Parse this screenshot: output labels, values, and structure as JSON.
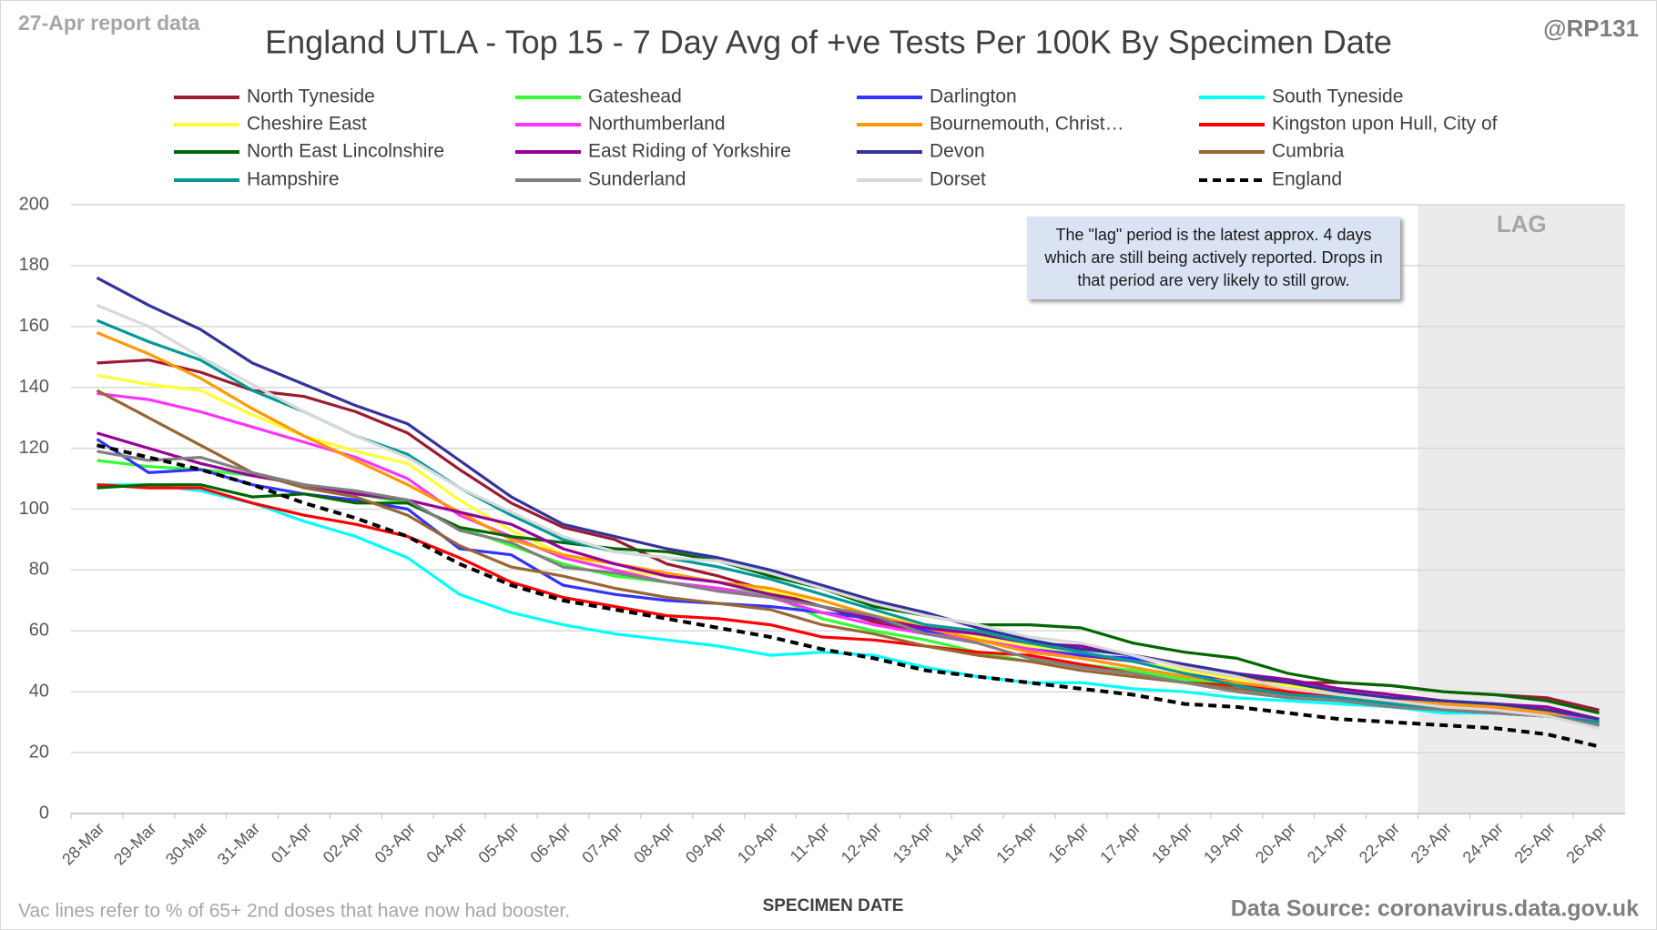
{
  "chart_data": {
    "type": "line",
    "title": "England UTLA - Top 15 - 7 Day Avg of +ve Tests Per 100K By Specimen Date",
    "report_note": "27-Apr report data",
    "author": "@RP131",
    "footnote": "Vac lines refer to % of 65+ 2nd doses that have now had booster.",
    "source": "Data Source: coronavirus.data.gov.uk",
    "x_label": "SPECIMEN DATE",
    "annotation": "The \"lag\" period is the latest approx. 4 days which are still being actively reported. Drops in that period are very likely to still grow.",
    "lag_label": "LAG",
    "lag_from": "23-Apr",
    "legend": "top",
    "grid": true,
    "ylim": [
      0,
      200
    ],
    "yticks": [
      0,
      20,
      40,
      60,
      80,
      100,
      120,
      140,
      160,
      180,
      200
    ],
    "categories": [
      "28-Mar",
      "29-Mar",
      "30-Mar",
      "31-Mar",
      "01-Apr",
      "02-Apr",
      "03-Apr",
      "04-Apr",
      "05-Apr",
      "06-Apr",
      "07-Apr",
      "08-Apr",
      "09-Apr",
      "10-Apr",
      "11-Apr",
      "12-Apr",
      "13-Apr",
      "14-Apr",
      "15-Apr",
      "16-Apr",
      "17-Apr",
      "18-Apr",
      "19-Apr",
      "20-Apr",
      "21-Apr",
      "22-Apr",
      "23-Apr",
      "24-Apr",
      "25-Apr",
      "26-Apr"
    ],
    "series": [
      {
        "name": "North Tyneside",
        "color": "#9b1b30",
        "values": [
          148,
          149,
          145,
          139,
          137,
          132,
          125,
          113,
          102,
          94,
          90,
          82,
          78,
          73,
          68,
          63,
          59,
          57,
          54,
          52,
          50,
          47,
          45,
          43,
          43,
          42,
          40,
          39,
          38,
          34
        ]
      },
      {
        "name": "Gateshead",
        "color": "#33ff33",
        "values": [
          116,
          114,
          113,
          111,
          108,
          105,
          102,
          94,
          88,
          82,
          78,
          76,
          74,
          72,
          64,
          60,
          57,
          53,
          50,
          49,
          47,
          44,
          42,
          40,
          39,
          37,
          36,
          35,
          34,
          31
        ]
      },
      {
        "name": "Darlington",
        "color": "#3333ff",
        "values": [
          123,
          112,
          113,
          108,
          105,
          103,
          100,
          87,
          85,
          75,
          72,
          70,
          69,
          68,
          66,
          64,
          60,
          58,
          55,
          52,
          51,
          46,
          43,
          40,
          39,
          37,
          35,
          33,
          32,
          30
        ]
      },
      {
        "name": "South Tyneside",
        "color": "#00ffff",
        "values": [
          108,
          108,
          106,
          102,
          96,
          91,
          84,
          72,
          66,
          62,
          59,
          57,
          55,
          52,
          53,
          52,
          48,
          45,
          43,
          43,
          41,
          40,
          38,
          37,
          36,
          35,
          33,
          33,
          32,
          29
        ]
      },
      {
        "name": "Cheshire East",
        "color": "#ffff33",
        "values": [
          144,
          141,
          139,
          131,
          124,
          119,
          115,
          103,
          93,
          85,
          80,
          78,
          76,
          73,
          70,
          65,
          62,
          58,
          55,
          53,
          50,
          47,
          44,
          42,
          40,
          38,
          36,
          35,
          34,
          30
        ]
      },
      {
        "name": "Northumberland",
        "color": "#ff33ff",
        "values": [
          138,
          136,
          132,
          127,
          122,
          117,
          110,
          98,
          91,
          84,
          80,
          76,
          74,
          71,
          66,
          62,
          59,
          57,
          54,
          51,
          48,
          45,
          43,
          41,
          39,
          37,
          36,
          35,
          33,
          30
        ]
      },
      {
        "name": "Bournemouth, Christ…",
        "color": "#ff9900",
        "values": [
          158,
          151,
          143,
          133,
          124,
          116,
          108,
          99,
          90,
          85,
          82,
          79,
          76,
          74,
          70,
          65,
          61,
          57,
          53,
          51,
          48,
          45,
          43,
          41,
          39,
          37,
          36,
          35,
          33,
          29
        ]
      },
      {
        "name": "Kingston upon Hull, City of",
        "color": "#ff0000",
        "values": [
          108,
          107,
          107,
          102,
          98,
          95,
          91,
          84,
          76,
          71,
          68,
          65,
          64,
          62,
          58,
          57,
          55,
          53,
          52,
          49,
          46,
          43,
          42,
          40,
          38,
          37,
          35,
          34,
          32,
          29
        ]
      },
      {
        "name": "North East Lincolnshire",
        "color": "#006600",
        "values": [
          107,
          108,
          108,
          104,
          105,
          102,
          102,
          94,
          91,
          89,
          87,
          86,
          83,
          78,
          74,
          68,
          65,
          62,
          62,
          61,
          56,
          53,
          51,
          46,
          43,
          42,
          40,
          39,
          37,
          33
        ]
      },
      {
        "name": "East Riding of Yorkshire",
        "color": "#990099",
        "values": [
          125,
          120,
          115,
          111,
          108,
          105,
          103,
          99,
          95,
          87,
          82,
          78,
          76,
          72,
          68,
          64,
          61,
          59,
          56,
          55,
          52,
          49,
          46,
          44,
          41,
          39,
          37,
          36,
          35,
          31
        ]
      },
      {
        "name": "Devon",
        "color": "#333399",
        "values": [
          176,
          167,
          159,
          148,
          141,
          134,
          128,
          116,
          104,
          95,
          91,
          87,
          84,
          80,
          75,
          70,
          66,
          61,
          57,
          54,
          52,
          49,
          46,
          43,
          40,
          38,
          37,
          36,
          34,
          31
        ]
      },
      {
        "name": "Cumbria",
        "color": "#996633",
        "values": [
          139,
          130,
          121,
          112,
          107,
          104,
          98,
          88,
          81,
          78,
          74,
          71,
          69,
          67,
          62,
          59,
          55,
          52,
          50,
          47,
          45,
          43,
          41,
          39,
          38,
          36,
          34,
          33,
          32,
          29
        ]
      },
      {
        "name": "Hampshire",
        "color": "#009999",
        "values": [
          162,
          155,
          149,
          139,
          132,
          124,
          118,
          107,
          98,
          90,
          86,
          84,
          81,
          77,
          72,
          67,
          62,
          60,
          56,
          53,
          50,
          46,
          42,
          39,
          38,
          36,
          34,
          33,
          32,
          30
        ]
      },
      {
        "name": "Sunderland",
        "color": "#808080",
        "values": [
          119,
          116,
          117,
          112,
          108,
          106,
          103,
          93,
          89,
          81,
          79,
          76,
          73,
          71,
          68,
          65,
          59,
          56,
          51,
          48,
          46,
          43,
          40,
          38,
          37,
          35,
          34,
          33,
          32,
          29
        ]
      },
      {
        "name": "Dorset",
        "color": "#d9d9d9",
        "values": [
          167,
          160,
          150,
          141,
          132,
          124,
          117,
          107,
          99,
          91,
          86,
          84,
          83,
          79,
          74,
          69,
          65,
          62,
          58,
          56,
          52,
          48,
          45,
          41,
          39,
          37,
          35,
          34,
          32,
          28
        ]
      },
      {
        "name": "England",
        "color": "#000000",
        "dashed": true,
        "values": [
          121,
          117,
          113,
          108,
          102,
          97,
          91,
          82,
          75,
          70,
          67,
          64,
          61,
          58,
          54,
          51,
          47,
          45,
          43,
          41,
          39,
          36,
          35,
          33,
          31,
          30,
          29,
          28,
          26,
          22
        ]
      }
    ]
  }
}
